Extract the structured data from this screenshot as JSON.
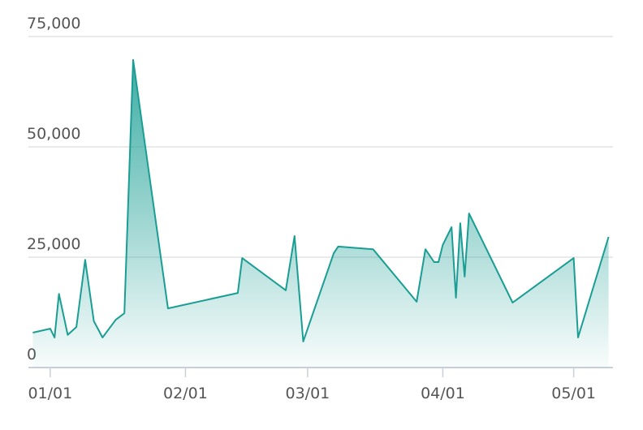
{
  "chart_data": {
    "type": "area",
    "x": [
      "12/28",
      "01/01",
      "01/02",
      "01/03",
      "01/05",
      "01/07",
      "01/09",
      "01/11",
      "01/13",
      "01/16",
      "01/18",
      "01/20",
      "01/28",
      "02/13",
      "02/14",
      "02/24",
      "02/26",
      "02/28",
      "03/07",
      "03/08",
      "03/16",
      "03/26",
      "03/28",
      "03/30",
      "03/31",
      "04/01",
      "04/03",
      "04/04",
      "04/05",
      "04/06",
      "04/07",
      "04/17",
      "05/01",
      "05/02",
      "05/09"
    ],
    "values": [
      7900,
      8800,
      6800,
      16700,
      7400,
      9200,
      24400,
      10500,
      6800,
      10800,
      12300,
      69700,
      13400,
      16900,
      24800,
      17500,
      29800,
      5900,
      25900,
      27400,
      26800,
      14900,
      26800,
      23900,
      23900,
      27800,
      31800,
      15800,
      32700,
      20600,
      34900,
      14700,
      24800,
      6800,
      29600
    ],
    "color": "#1a9e94",
    "xlim": [
      "12/27",
      "05/10"
    ],
    "xticks": [
      "01/01",
      "02/01",
      "03/01",
      "04/01",
      "05/01"
    ],
    "ylim": [
      0,
      75000
    ],
    "yticks": [
      0,
      {
        "value": 25000,
        "label": "25,000"
      },
      {
        "value": 50000,
        "label": "50,000"
      },
      {
        "value": 75000,
        "label": "75,000"
      }
    ],
    "grid": true
  }
}
